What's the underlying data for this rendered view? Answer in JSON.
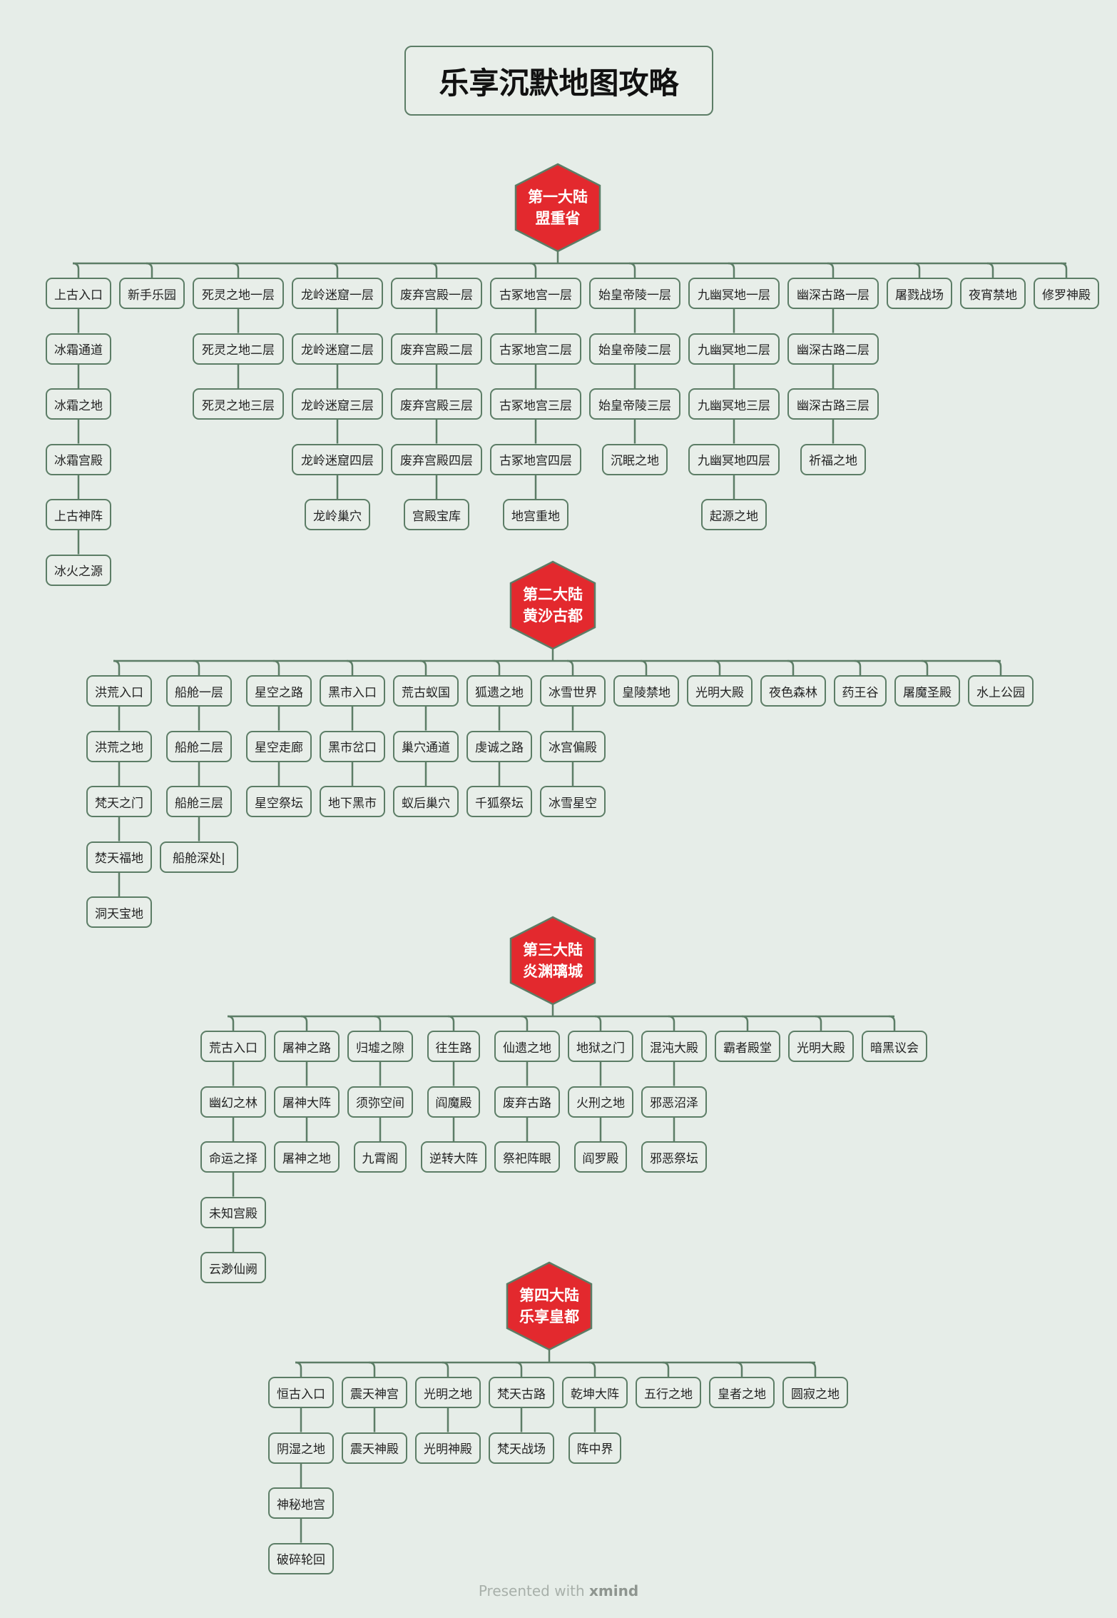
{
  "title": "乐享沉默地图攻略",
  "footer": {
    "prefix": "Presented with",
    "brand": "xmind"
  },
  "colors": {
    "background": "#e6ede8",
    "node_border": "#5c7d66",
    "hex_fill": "#e3292e",
    "hex_text": "#ffffff"
  },
  "sections": [
    {
      "title_line1": "第一大陆",
      "title_line2": "盟重省",
      "branches": [
        [
          "上古入口",
          "冰霜通道",
          "冰霜之地",
          "冰霜宫殿",
          "上古神阵",
          "冰火之源"
        ],
        [
          "新手乐园"
        ],
        [
          "死灵之地一层",
          "死灵之地二层",
          "死灵之地三层"
        ],
        [
          "龙岭迷窟一层",
          "龙岭迷窟二层",
          "龙岭迷窟三层",
          "龙岭迷窟四层",
          "龙岭巢穴"
        ],
        [
          "废弃宫殿一层",
          "废弃宫殿二层",
          "废弃宫殿三层",
          "废弃宫殿四层",
          "宫殿宝库"
        ],
        [
          "古冢地宫一层",
          "古冢地宫二层",
          "古冢地宫三层",
          "古冢地宫四层",
          "地宫重地"
        ],
        [
          "始皇帝陵一层",
          "始皇帝陵二层",
          "始皇帝陵三层",
          "沉眠之地"
        ],
        [
          "九幽冥地一层",
          "九幽冥地二层",
          "九幽冥地三层",
          "九幽冥地四层",
          "起源之地"
        ],
        [
          "幽深古路一层",
          "幽深古路二层",
          "幽深古路三层",
          "祈福之地"
        ],
        [
          "屠戮战场"
        ],
        [
          "夜宵禁地"
        ],
        [
          "修罗神殿"
        ]
      ]
    },
    {
      "title_line1": "第二大陆",
      "title_line2": "黄沙古都",
      "branches": [
        [
          "洪荒入口",
          "洪荒之地",
          "梵天之门",
          "焚天福地",
          "洞天宝地"
        ],
        [
          "船舱一层",
          "船舱二层",
          "船舱三层",
          "船舱深处|"
        ],
        [
          "星空之路",
          "星空走廊",
          "星空祭坛"
        ],
        [
          "黑市入口",
          "黑市岔口",
          "地下黑市"
        ],
        [
          "荒古蚁国",
          "巢穴通道",
          "蚁后巢穴"
        ],
        [
          "狐遗之地",
          "虔诚之路",
          "千狐祭坛"
        ],
        [
          "冰雪世界",
          "冰宫偏殿",
          "冰雪星空"
        ],
        [
          "皇陵禁地"
        ],
        [
          "光明大殿"
        ],
        [
          "夜色森林"
        ],
        [
          "药王谷"
        ],
        [
          "屠魔圣殿"
        ],
        [
          "水上公园"
        ]
      ]
    },
    {
      "title_line1": "第三大陆",
      "title_line2": "炎渊璃城",
      "branches": [
        [
          "荒古入口",
          "幽幻之林",
          "命运之择",
          "未知宫殿",
          "云渺仙阙"
        ],
        [
          "屠神之路",
          "屠神大阵",
          "屠神之地"
        ],
        [
          "归墟之隙",
          "须弥空间",
          "九霄阁"
        ],
        [
          "往生路",
          "阎魔殿",
          "逆转大阵"
        ],
        [
          "仙遗之地",
          "废弃古路",
          "祭祀阵眼"
        ],
        [
          "地狱之门",
          "火刑之地",
          "阎罗殿"
        ],
        [
          "混沌大殿",
          "邪恶沼泽",
          "邪恶祭坛"
        ],
        [
          "霸者殿堂"
        ],
        [
          "光明大殿"
        ],
        [
          "暗黑议会"
        ]
      ]
    },
    {
      "title_line1": "第四大陆",
      "title_line2": "乐享皇都",
      "branches": [
        [
          "恒古入口",
          "阴湿之地",
          "神秘地宫",
          "破碎轮回"
        ],
        [
          "震天神宫",
          "震天神殿"
        ],
        [
          "光明之地",
          "光明神殿"
        ],
        [
          "梵天古路",
          "梵天战场"
        ],
        [
          "乾坤大阵",
          "阵中界"
        ],
        [
          "五行之地"
        ],
        [
          "皇者之地"
        ],
        [
          "圆寂之地"
        ]
      ]
    }
  ]
}
